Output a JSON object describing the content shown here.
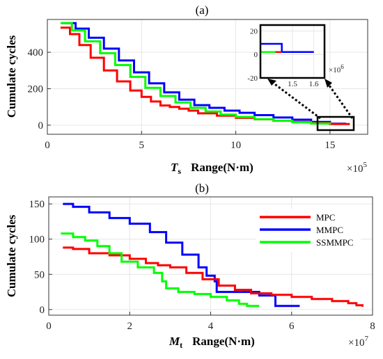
{
  "chart_data": [
    {
      "type": "line",
      "title": "(a)",
      "ylabel": "Cumulate cycles",
      "xlabel_symbol": "T",
      "xlabel_sub": "s",
      "xlabel_text": "Range(N·m)",
      "x_multiplier": "×10",
      "x_multiplier_exp": "5",
      "xlim": [
        0,
        17
      ],
      "ylim": [
        -50,
        580
      ],
      "xticks": [
        0,
        5,
        10,
        15
      ],
      "yticks": [
        0,
        200,
        400
      ],
      "grid": true,
      "series": [
        {
          "color": "#ff0000",
          "x": [
            0.7,
            1.2,
            1.7,
            2.3,
            3.0,
            3.7,
            4.4,
            5.0,
            5.5,
            6.0,
            6.5,
            7.0,
            7.5,
            8.0,
            9.0,
            10.0,
            11.0,
            12.0,
            13.0,
            14.0,
            15.0,
            16.0
          ],
          "y": [
            535,
            500,
            440,
            370,
            300,
            240,
            190,
            155,
            130,
            108,
            100,
            90,
            80,
            65,
            52,
            40,
            32,
            24,
            18,
            12,
            6,
            1
          ]
        },
        {
          "color": "#0000ff",
          "x": [
            0.8,
            1.5,
            2.2,
            3.0,
            3.8,
            4.6,
            5.4,
            6.2,
            7.0,
            7.8,
            8.6,
            9.4,
            10.2,
            11.0,
            12.0,
            13.0,
            14.0,
            15.0,
            15.8
          ],
          "y": [
            560,
            530,
            480,
            420,
            355,
            290,
            230,
            180,
            140,
            110,
            95,
            80,
            68,
            55,
            42,
            30,
            18,
            8,
            3
          ]
        },
        {
          "color": "#00ff00",
          "x": [
            0.7,
            1.3,
            2.0,
            2.8,
            3.6,
            4.4,
            5.2,
            6.0,
            6.8,
            7.6,
            8.4,
            9.2,
            10.0,
            11.0,
            12.0,
            13.0,
            14.0,
            15.0
          ],
          "y": [
            560,
            520,
            460,
            395,
            330,
            265,
            205,
            160,
            125,
            95,
            75,
            58,
            45,
            33,
            24,
            16,
            9,
            4
          ]
        }
      ],
      "inset": {
        "xlim": [
          1.35,
          1.65
        ],
        "ylim": [
          -20,
          25
        ],
        "xticks": [
          "1.5",
          "1.6"
        ],
        "yticks": [
          "20",
          "0",
          "-20"
        ],
        "x_multiplier": "×10",
        "x_multiplier_exp": "6",
        "series": [
          {
            "color": "#0000ff",
            "x": [
              1.35,
              1.45,
              1.45,
              1.6
            ],
            "y": [
              9,
              9,
              2,
              2
            ]
          },
          {
            "color": "#00ff00",
            "x": [
              1.35,
              1.42
            ],
            "y": [
              2,
              2
            ]
          },
          {
            "color": "#ff0000",
            "x": [
              1.42,
              1.45
            ],
            "y": [
              2,
              2
            ]
          }
        ]
      }
    },
    {
      "type": "line",
      "title": "(b)",
      "ylabel": "Cumulate cycles",
      "xlabel_symbol": "M",
      "xlabel_sub": "t",
      "xlabel_text": "Range(N·m)",
      "x_multiplier": "×10",
      "x_multiplier_exp": "7",
      "xlim": [
        0,
        8
      ],
      "ylim": [
        -8,
        160
      ],
      "xticks": [
        0,
        2,
        4,
        6,
        8
      ],
      "yticks": [
        0,
        50,
        100,
        150
      ],
      "grid": true,
      "legend_position": "top-right",
      "series": [
        {
          "name": "MPC",
          "color": "#ff0000",
          "x": [
            0.35,
            0.6,
            1.0,
            1.5,
            2.0,
            2.4,
            2.7,
            3.0,
            3.4,
            3.8,
            4.2,
            4.6,
            5.0,
            5.5,
            6.0,
            6.5,
            7.0,
            7.4,
            7.6,
            7.75
          ],
          "y": [
            88,
            86,
            80,
            77,
            72,
            66,
            63,
            60,
            52,
            43,
            34,
            28,
            23,
            21,
            18,
            15,
            12,
            9,
            6,
            4
          ]
        },
        {
          "name": "MMPC",
          "color": "#0000ff",
          "x": [
            0.35,
            0.6,
            1.0,
            1.5,
            2.0,
            2.5,
            2.9,
            3.3,
            3.7,
            3.9,
            4.1,
            4.15,
            4.5,
            5.0,
            5.2,
            5.5,
            5.6,
            6.2
          ],
          "y": [
            150,
            146,
            138,
            130,
            122,
            110,
            95,
            78,
            60,
            48,
            40,
            25,
            25,
            25,
            20,
            20,
            5,
            5
          ]
        },
        {
          "name": "SSMMPC",
          "color": "#00ff00",
          "x": [
            0.3,
            0.6,
            0.9,
            1.2,
            1.5,
            1.8,
            2.2,
            2.6,
            2.8,
            2.9,
            3.2,
            3.6,
            4.0,
            4.4,
            4.7,
            4.9,
            5.2
          ],
          "y": [
            108,
            103,
            98,
            90,
            80,
            68,
            60,
            52,
            40,
            30,
            25,
            22,
            18,
            13,
            8,
            5,
            5
          ]
        }
      ]
    }
  ]
}
